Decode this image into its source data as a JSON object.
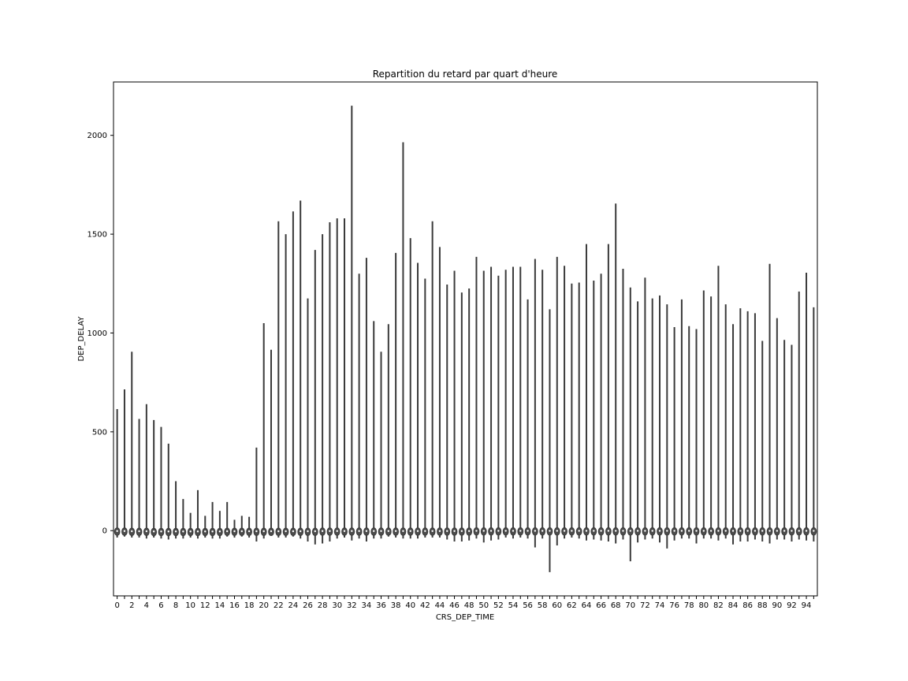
{
  "chart_data": {
    "type": "violin",
    "title": "Repartition du retard par quart d'heure",
    "xlabel": "CRS_DEP_TIME",
    "ylabel": "DEP_DELAY",
    "x": [
      0,
      1,
      2,
      3,
      4,
      5,
      6,
      7,
      8,
      9,
      10,
      11,
      12,
      13,
      14,
      15,
      16,
      17,
      18,
      19,
      20,
      21,
      22,
      23,
      24,
      25,
      26,
      27,
      28,
      29,
      30,
      31,
      32,
      33,
      34,
      35,
      36,
      37,
      38,
      39,
      40,
      41,
      42,
      43,
      44,
      45,
      46,
      47,
      48,
      49,
      50,
      51,
      52,
      53,
      54,
      55,
      56,
      57,
      58,
      59,
      60,
      61,
      62,
      63,
      64,
      65,
      66,
      67,
      68,
      69,
      70,
      71,
      72,
      73,
      74,
      75,
      76,
      77,
      78,
      79,
      80,
      81,
      82,
      83,
      84,
      85,
      86,
      87,
      88,
      89,
      90,
      91,
      92,
      93,
      94,
      95
    ],
    "x_tick_labels": [
      "0",
      "2",
      "4",
      "6",
      "8",
      "10",
      "12",
      "14",
      "16",
      "18",
      "20",
      "22",
      "24",
      "26",
      "28",
      "30",
      "32",
      "34",
      "36",
      "38",
      "40",
      "42",
      "44",
      "46",
      "48",
      "50",
      "52",
      "54",
      "56",
      "58",
      "60",
      "62",
      "64",
      "66",
      "68",
      "70",
      "72",
      "74",
      "76",
      "78",
      "80",
      "82",
      "84",
      "86",
      "88",
      "90",
      "92",
      "94"
    ],
    "y_ticks": [
      0,
      500,
      1000,
      1500,
      2000
    ],
    "y_tick_labels": [
      "0",
      "500",
      "1000",
      "1500",
      "2000"
    ],
    "ylim": [
      -330,
      2270
    ],
    "grid": false,
    "series": [
      {
        "max": [
          615,
          715,
          905,
          565,
          640,
          560,
          525,
          440,
          250,
          160,
          90,
          205,
          75,
          145,
          100,
          145,
          55,
          75,
          70,
          420,
          1050,
          915,
          1565,
          1500,
          1615,
          1670,
          1175,
          1420,
          1500,
          1560,
          1580,
          1580,
          2150,
          1300,
          1380,
          1060,
          905,
          1045,
          1405,
          1965,
          1480,
          1355,
          1275,
          1565,
          1435,
          1245,
          1315,
          1205,
          1225,
          1385,
          1315,
          1335,
          1290,
          1320,
          1335,
          1335,
          1170,
          1375,
          1320,
          1120,
          1385,
          1340,
          1250,
          1255,
          1450,
          1265,
          1300,
          1450,
          1655,
          1325,
          1230,
          1160,
          1280,
          1175,
          1190,
          1145,
          1030,
          1170,
          1035,
          1020,
          1215,
          1185,
          1340,
          1145,
          1045,
          1125,
          1110,
          1100,
          960,
          1350,
          1075,
          965,
          940,
          1210,
          1305,
          1130
        ],
        "min": [
          -35,
          -30,
          -35,
          -35,
          -40,
          -35,
          -40,
          -45,
          -40,
          -40,
          -35,
          -40,
          -35,
          -40,
          -40,
          -30,
          -35,
          -30,
          -35,
          -55,
          -40,
          -25,
          -35,
          -35,
          -30,
          -40,
          -55,
          -70,
          -65,
          -55,
          -40,
          -35,
          -50,
          -40,
          -55,
          -40,
          -40,
          -30,
          -35,
          -40,
          -40,
          -40,
          -35,
          -35,
          -35,
          -45,
          -55,
          -55,
          -50,
          -40,
          -60,
          -50,
          -45,
          -35,
          -40,
          -35,
          -40,
          -85,
          -40,
          -210,
          -75,
          -40,
          -35,
          -40,
          -50,
          -45,
          -50,
          -55,
          -65,
          -45,
          -155,
          -60,
          -45,
          -40,
          -60,
          -90,
          -50,
          -40,
          -40,
          -65,
          -40,
          -40,
          -50,
          -40,
          -70,
          -55,
          -55,
          -45,
          -55,
          -65,
          -45,
          -45,
          -55,
          -45,
          -50,
          -55
        ],
        "median": [
          -2,
          -2,
          -3,
          -3,
          -3,
          -4,
          -4,
          -4,
          -4,
          -4,
          -4,
          -4,
          -4,
          -4,
          -4,
          -3,
          -3,
          -3,
          -3,
          -3,
          -3,
          -3,
          -3,
          -3,
          -3,
          -3,
          -3,
          -3,
          -2,
          -2,
          -2,
          -2,
          -2,
          -2,
          -2,
          -2,
          -2,
          -2,
          -2,
          -2,
          -2,
          -2,
          -2,
          -2,
          -2,
          -2,
          -2,
          -2,
          -2,
          -1,
          -1,
          -1,
          -1,
          -1,
          -1,
          -1,
          -1,
          -1,
          -1,
          -1,
          -1,
          -1,
          -1,
          -1,
          -1,
          -1,
          -1,
          -1,
          -1,
          -1,
          -1,
          -1,
          -1,
          -1,
          -1,
          -1,
          -1,
          -1,
          -1,
          -1,
          -1,
          -1,
          -1,
          -1,
          -1,
          -1,
          -1,
          -1,
          -1,
          -1,
          -1,
          -1,
          -1,
          -1,
          -1,
          -1
        ]
      }
    ]
  }
}
